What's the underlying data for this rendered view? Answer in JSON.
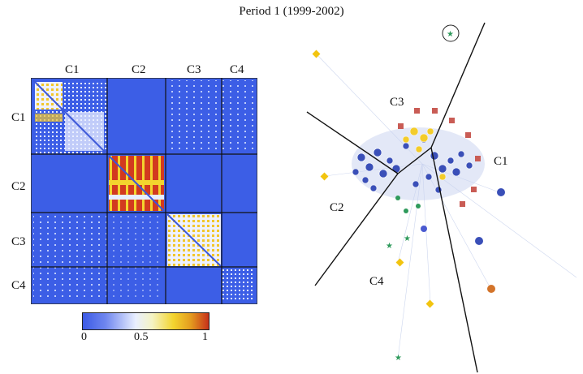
{
  "title": "Period 1 (1999-2002)",
  "matrix": {
    "col_labels": [
      "C1",
      "C2",
      "C3",
      "C4"
    ],
    "row_labels": [
      "C1",
      "C2",
      "C3",
      "C4"
    ]
  },
  "colorbar": {
    "ticks": [
      "0",
      "0.5",
      "1"
    ],
    "colors": [
      "#3b5ae6",
      "#e9efff",
      "#f3d42e",
      "#c7311a"
    ]
  },
  "network": {
    "region_labels": [
      "C3",
      "C1",
      "C2",
      "C4"
    ]
  }
}
